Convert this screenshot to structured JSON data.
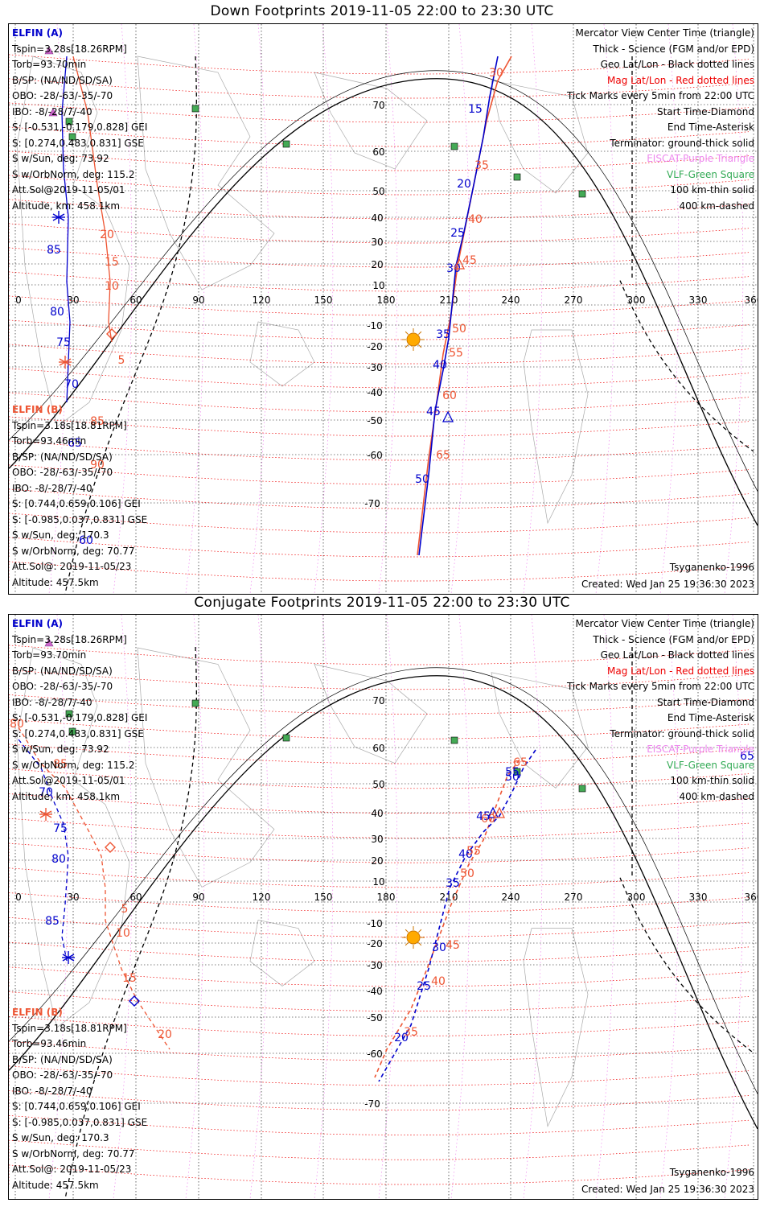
{
  "panels": [
    {
      "title": "Down Footprints 2019-11-05 22:00 to 23:30 UTC",
      "elfin_a": {
        "header": "ELFIN (A)",
        "lines": [
          "Tspin=3.28s[18.26RPM]",
          "Torb=93.70min",
          "B/SP: (NA/ND/SD/SA)",
          "OBO: -28/-63/-35/-70",
          "IBO: -8/-28/7/-40",
          "S: [-0.531,-0.179,0.828] GEI",
          "S: [0.274,0.483,0.831] GSE",
          "S w/Sun, deg: 73.92",
          "S w/OrbNorm, deg: 115.2",
          "Att.Sol@2019-11-05/01",
          "Altitude, km: 458.1km"
        ]
      },
      "elfin_b": {
        "header": "ELFIN (B)",
        "lines": [
          "Tspin=3.18s[18.81RPM]",
          "Torb=93.46min",
          "B/SP: (NA/ND/SD/SA)",
          "OBO: -28/-63/-35/-70",
          "IBO: -8/-28/7/-40",
          "S: [0.744,0.659,0.106] GEI",
          "S: [-0.985,0.037,0.831] GSE",
          "S w/Sun, deg: 170.3",
          "S w/OrbNorm, deg: 70.77",
          "Att.Sol@: 2019-11-05/23",
          "Altitude: 457.5km"
        ]
      },
      "legend": [
        {
          "text": "Mercator View Center Time (triangle)",
          "color": "#000000"
        },
        {
          "text": "Thick - Science (FGM and/or EPD)",
          "color": "#000000"
        },
        {
          "text": "Geo Lat/Lon - Black dotted lines",
          "color": "#000000"
        },
        {
          "text": "Mag Lat/Lon - Red dotted lines",
          "color": "#ee0000"
        },
        {
          "text": "Tick Marks every 5min from 22:00 UTC",
          "color": "#000000"
        },
        {
          "text": "Start Time-Diamond",
          "color": "#000000"
        },
        {
          "text": "End Time-Asterisk",
          "color": "#000000"
        },
        {
          "text": "Terminator: ground-thick solid",
          "color": "#000000"
        },
        {
          "text": "EISCAT-Purple Triangle",
          "color": "#ee88ee"
        },
        {
          "text": "VLF-Green Square",
          "color": "#33aa55"
        },
        {
          "text": "100 km-thin solid",
          "color": "#000000"
        },
        {
          "text": "400 km-dashed",
          "color": "#000000"
        }
      ],
      "model": "Tsyganenko-1996",
      "created": "Created: Wed Jan 25 19:36:30 2023",
      "lon_ticks": [
        "0",
        "30",
        "60",
        "90",
        "120",
        "150",
        "180",
        "210",
        "240",
        "270",
        "300",
        "330",
        "360"
      ],
      "lat_ticks": [
        "70",
        "60",
        "50",
        "40",
        "30",
        "20",
        "10",
        "-10",
        "-20",
        "-30",
        "-40",
        "-50",
        "-60",
        "-70"
      ],
      "track_a_labels": [
        "15",
        "20",
        "25",
        "30",
        "35",
        "40",
        "45",
        "50",
        "85",
        "80",
        "75",
        "70",
        "65",
        "60"
      ],
      "track_b_labels": [
        "30",
        "35",
        "40",
        "45",
        "50",
        "55",
        "60",
        "65",
        "20",
        "15",
        "10",
        "5",
        "85",
        "90"
      ]
    },
    {
      "title": "Conjugate Footprints 2019-11-05 22:00 to 23:30 UTC",
      "elfin_a": {
        "header": "ELFIN (A)",
        "lines": [
          "Tspin=3.28s[18.26RPM]",
          "Torb=93.70min",
          "B/SP: (NA/ND/SD/SA)",
          "OBO: -28/-63/-35/-70",
          "IBO: -8/-28/7/-40",
          "S: [-0.531,-0.179,0.828] GEI",
          "S: [0.274,0.483,0.831] GSE",
          "S w/Sun, deg: 73.92",
          "S w/OrbNorm, deg: 115.2",
          "Att.Sol@2019-11-05/01",
          "Altitude, km: 458.1km"
        ]
      },
      "elfin_b": {
        "header": "ELFIN (B)",
        "lines": [
          "Tspin=3.18s[18.81RPM]",
          "Torb=93.46min",
          "B/SP: (NA/ND/SD/SA)",
          "OBO: -28/-63/-35/-70",
          "IBO: -8/-28/7/-40",
          "S: [0.744,0.659,0.106] GEI",
          "S: [-0.985,0.037,0.831] GSE",
          "S w/Sun, deg: 170.3",
          "S w/OrbNorm, deg: 70.77",
          "Att.Sol@: 2019-11-05/23",
          "Altitude: 457.5km"
        ]
      },
      "legend": [
        {
          "text": "Mercator View Center Time (triangle)",
          "color": "#000000"
        },
        {
          "text": "Thick - Science (FGM and/or EPD)",
          "color": "#000000"
        },
        {
          "text": "Geo Lat/Lon - Black dotted lines",
          "color": "#000000"
        },
        {
          "text": "Mag Lat/Lon - Red dotted lines",
          "color": "#ee0000"
        },
        {
          "text": "Tick Marks every 5min from 22:00 UTC",
          "color": "#000000"
        },
        {
          "text": "Start Time-Diamond",
          "color": "#000000"
        },
        {
          "text": "End Time-Asterisk",
          "color": "#000000"
        },
        {
          "text": "Terminator: ground-thick solid",
          "color": "#000000"
        },
        {
          "text": "EISCAT-Purple Triangle",
          "color": "#ee88ee"
        },
        {
          "text": "VLF-Green Square",
          "color": "#33aa55"
        },
        {
          "text": "100 km-thin solid",
          "color": "#000000"
        },
        {
          "text": "400 km-dashed",
          "color": "#000000"
        }
      ],
      "model": "Tsyganenko-1996",
      "created": "Created: Wed Jan 25 19:36:30 2023",
      "lon_ticks": [
        "0",
        "30",
        "60",
        "90",
        "120",
        "150",
        "180",
        "210",
        "240",
        "270",
        "300",
        "330",
        "360"
      ],
      "lat_ticks": [
        "70",
        "60",
        "50",
        "40",
        "30",
        "20",
        "10",
        "-10",
        "-20",
        "-30",
        "-40",
        "-50",
        "-60",
        "-70"
      ],
      "track_a_labels": [
        "65",
        "55",
        "50",
        "45",
        "40",
        "35",
        "30",
        "25",
        "20",
        "70",
        "75",
        "80",
        "85"
      ],
      "track_b_labels": [
        "65",
        "60",
        "55",
        "50",
        "45",
        "40",
        "35",
        "80",
        "85",
        "5",
        "10",
        "15",
        "20"
      ]
    }
  ]
}
